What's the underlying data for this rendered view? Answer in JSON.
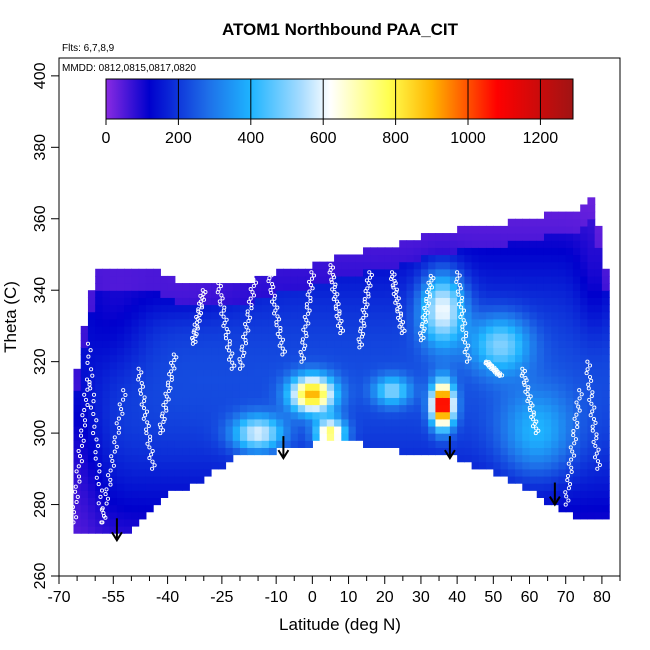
{
  "chart_data": {
    "type": "heatmap",
    "title": "ATOM1 Northbound PAA_CIT",
    "note_flights": "Flts: 6,7,8,9",
    "note_dates": "MMDD: 0812,0815,0817,0820",
    "xlabel": "Latitude (deg N)",
    "ylabel": "Theta (C)",
    "xlim": [
      -70,
      85
    ],
    "ylim": [
      260,
      405
    ],
    "x_major_ticks": [
      -70,
      -55,
      -40,
      -25,
      -10,
      0,
      10,
      20,
      30,
      40,
      50,
      60,
      70,
      80
    ],
    "x_minor_ticks": [
      -65,
      -60,
      -50,
      -45,
      -35,
      -30,
      -20,
      -15,
      -5,
      5,
      15,
      25,
      35,
      45,
      55,
      65,
      75,
      85
    ],
    "y_ticks": [
      260,
      280,
      300,
      320,
      340,
      360,
      380,
      400
    ],
    "colorbar": {
      "range": [
        0,
        1290
      ],
      "ticks": [
        0,
        200,
        400,
        600,
        800,
        1000,
        1200
      ],
      "boundaries": [
        200,
        400,
        600,
        800,
        1000,
        1200
      ],
      "stops": [
        {
          "v": 0,
          "c": "#8a2be2"
        },
        {
          "v": 120,
          "c": "#0000cd"
        },
        {
          "v": 280,
          "c": "#1e6ee8"
        },
        {
          "v": 400,
          "c": "#1eb4ff"
        },
        {
          "v": 540,
          "c": "#a8dcff"
        },
        {
          "v": 620,
          "c": "#ffffff"
        },
        {
          "v": 780,
          "c": "#ffff50"
        },
        {
          "v": 900,
          "c": "#ffb400"
        },
        {
          "v": 1080,
          "c": "#ff0000"
        },
        {
          "v": 1290,
          "c": "#a01414"
        }
      ]
    },
    "field_ceiling": [
      [
        -66,
        312
      ],
      [
        -60,
        346
      ],
      [
        -45,
        346
      ],
      [
        -35,
        341
      ],
      [
        -20,
        342
      ],
      [
        -10,
        345
      ],
      [
        0,
        347
      ],
      [
        10,
        350
      ],
      [
        20,
        352
      ],
      [
        30,
        355
      ],
      [
        40,
        357
      ],
      [
        50,
        358
      ],
      [
        60,
        360
      ],
      [
        70,
        362
      ],
      [
        75,
        363
      ],
      [
        78,
        366
      ],
      [
        80,
        350
      ],
      [
        82,
        340
      ]
    ],
    "field_floor": [
      [
        -66,
        272
      ],
      [
        -50,
        272
      ],
      [
        -40,
        283
      ],
      [
        -30,
        287
      ],
      [
        -20,
        294
      ],
      [
        -10,
        295
      ],
      [
        0,
        297
      ],
      [
        10,
        298
      ],
      [
        20,
        296
      ],
      [
        30,
        294
      ],
      [
        40,
        293
      ],
      [
        50,
        289
      ],
      [
        60,
        284
      ],
      [
        70,
        278
      ],
      [
        74,
        276
      ],
      [
        82,
        276
      ]
    ],
    "background_level": 230,
    "hot_spots": [
      {
        "lat": -66,
        "theta": 300,
        "value": 40,
        "spread_lat": 8,
        "spread_theta": 30
      },
      {
        "lat": -55,
        "theta": 330,
        "value": 60,
        "spread_lat": 10,
        "spread_theta": 18
      },
      {
        "lat": -35,
        "theta": 340,
        "value": 80,
        "spread_lat": 15,
        "spread_theta": 8
      },
      {
        "lat": -15,
        "theta": 300,
        "value": 520,
        "spread_lat": 7,
        "spread_theta": 5
      },
      {
        "lat": 0,
        "theta": 311,
        "value": 820,
        "spread_lat": 6,
        "spread_theta": 5
      },
      {
        "lat": 5,
        "theta": 300,
        "value": 700,
        "spread_lat": 4,
        "spread_theta": 4
      },
      {
        "lat": 22,
        "theta": 312,
        "value": 420,
        "spread_lat": 5,
        "spread_theta": 4
      },
      {
        "lat": 36,
        "theta": 308,
        "value": 1100,
        "spread_lat": 3,
        "spread_theta": 6
      },
      {
        "lat": 36,
        "theta": 335,
        "value": 560,
        "spread_lat": 6,
        "spread_theta": 10
      },
      {
        "lat": 52,
        "theta": 325,
        "value": 420,
        "spread_lat": 8,
        "spread_theta": 8
      },
      {
        "lat": 62,
        "theta": 300,
        "value": 330,
        "spread_lat": 10,
        "spread_theta": 12
      },
      {
        "lat": 78,
        "theta": 340,
        "value": 80,
        "spread_lat": 5,
        "spread_theta": 15
      }
    ],
    "tropopause_arrows": [
      {
        "lat": -54,
        "theta": 270
      },
      {
        "lat": -8,
        "theta": 293
      },
      {
        "lat": 38,
        "theta": 293
      },
      {
        "lat": 67,
        "theta": 280
      }
    ],
    "flight_profiles": [
      {
        "lat0": -66,
        "lat1": -62,
        "theta0": 275,
        "theta1": 315
      },
      {
        "lat0": -62,
        "lat1": -58,
        "theta0": 325,
        "theta1": 275
      },
      {
        "lat0": -58,
        "lat1": -52,
        "theta0": 275,
        "theta1": 312
      },
      {
        "lat0": -48,
        "lat1": -44,
        "theta0": 318,
        "theta1": 290
      },
      {
        "lat0": -42,
        "lat1": -38,
        "theta0": 300,
        "theta1": 322
      },
      {
        "lat0": -33,
        "lat1": -30,
        "theta0": 325,
        "theta1": 340
      },
      {
        "lat0": -26,
        "lat1": -22,
        "theta0": 342,
        "theta1": 318
      },
      {
        "lat0": -20,
        "lat1": -16,
        "theta0": 318,
        "theta1": 343
      },
      {
        "lat0": -12,
        "lat1": -8,
        "theta0": 345,
        "theta1": 322
      },
      {
        "lat0": -3,
        "lat1": 0,
        "theta0": 320,
        "theta1": 345
      },
      {
        "lat0": 5,
        "lat1": 8,
        "theta0": 347,
        "theta1": 328
      },
      {
        "lat0": 13,
        "lat1": 16,
        "theta0": 324,
        "theta1": 345
      },
      {
        "lat0": 22,
        "lat1": 25,
        "theta0": 345,
        "theta1": 328
      },
      {
        "lat0": 30,
        "lat1": 33,
        "theta0": 326,
        "theta1": 344
      },
      {
        "lat0": 40,
        "lat1": 43,
        "theta0": 345,
        "theta1": 320
      },
      {
        "lat0": 48,
        "lat1": 52,
        "theta0": 320,
        "theta1": 316
      },
      {
        "lat0": 58,
        "lat1": 62,
        "theta0": 318,
        "theta1": 300
      },
      {
        "lat0": 70,
        "lat1": 74,
        "theta0": 280,
        "theta1": 312
      },
      {
        "lat0": 76,
        "lat1": 79,
        "theta0": 320,
        "theta1": 290
      }
    ]
  }
}
